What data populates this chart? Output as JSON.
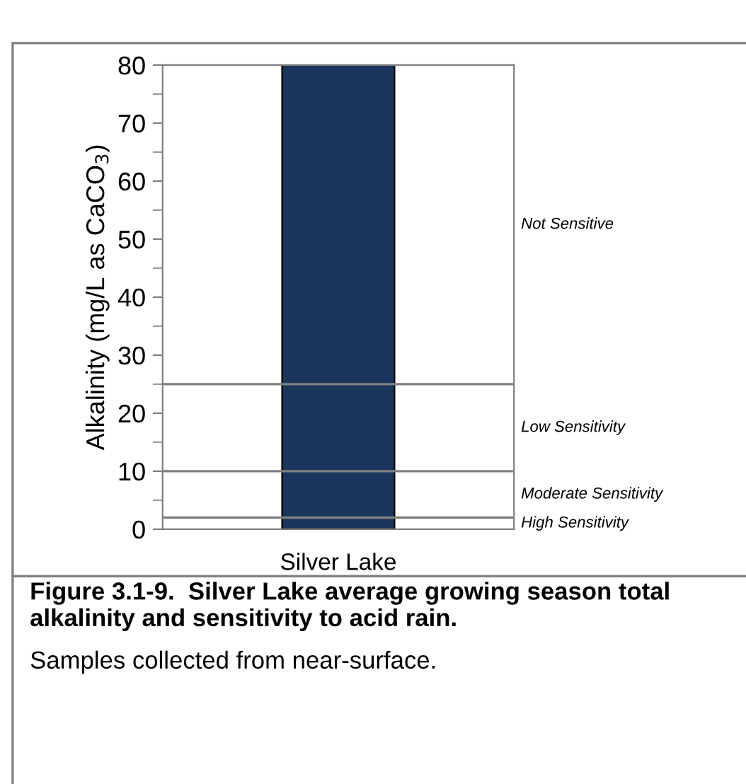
{
  "chart_data": {
    "type": "bar",
    "title": "Figure 3.1-9.  Silver Lake average growing season total alkalinity and sensitivity to acid rain.",
    "ylabel": "Alkalinity (mg/L as CaCO$_{3}$)",
    "categories": [
      "Silver Lake"
    ],
    "values": [
      80
    ],
    "color": "#1b365d",
    "ylim": [
      0,
      80
    ],
    "yticks": [
      0,
      10,
      20,
      30,
      40,
      50,
      60,
      70,
      80
    ],
    "grid": false,
    "ref_lines": [
      {
        "axis": "y",
        "value": 25,
        "color": "#808080"
      },
      {
        "axis": "y",
        "value": 10,
        "color": "#808080"
      },
      {
        "axis": "y",
        "value": 2,
        "color": "#808080"
      }
    ],
    "annotations": [
      "Not Sensitive",
      "Low Sensitivity",
      "Moderate Sensitivity",
      "High Sensitivity",
      "Samples collected from near-surface."
    ]
  }
}
